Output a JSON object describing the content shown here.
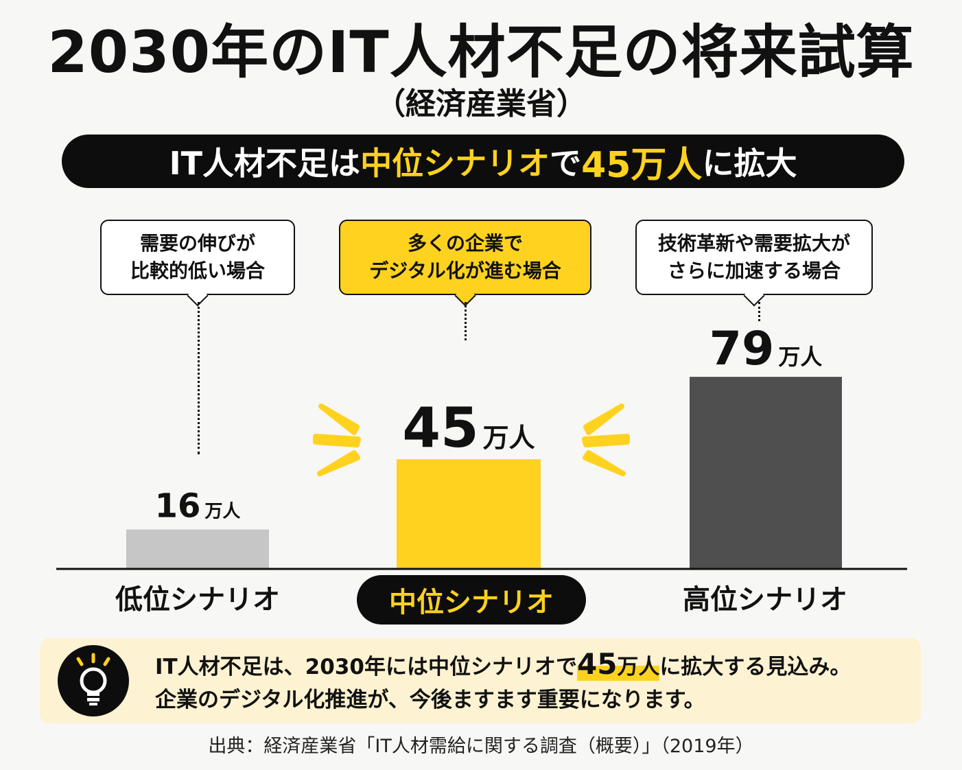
{
  "title": "2030年のIT人材不足の将来試算",
  "subtitle": "（経済産業省）",
  "headline": {
    "part1": "IT人材不足は",
    "part2": "中位シナリオ",
    "part3": "で",
    "part4": "45万人",
    "part5": "に拡大"
  },
  "bubbles": [
    {
      "line1": "需要の伸びが",
      "line2": "比較的低い場合"
    },
    {
      "line1": "多くの企業で",
      "line2": "デジタル化が進む場合"
    },
    {
      "line1": "技術革新や需要拡大が",
      "line2": "さらに加速する場合"
    }
  ],
  "chart_data": {
    "type": "bar",
    "categories": [
      "低位シナリオ",
      "中位シナリオ",
      "高位シナリオ"
    ],
    "values": [
      16,
      45,
      79
    ],
    "unit": "万人",
    "data_labels": [
      "16",
      "45",
      "79"
    ],
    "colors": [
      "#c6c6c6",
      "#ffd21f",
      "#4f4f4f"
    ],
    "highlight": "中位シナリオ"
  },
  "note": {
    "line1_a": "IT人材不足は、2030年には中位シナリオで",
    "line1_num": "45",
    "line1_unit": "万人",
    "line1_b": "に拡大する見込み。",
    "line2": "企業のデジタル化推進が、今後ますます重要になります。",
    "icon": "lightbulb-icon"
  },
  "source": "出典：経済産業省「IT人材需給に関する調査（概要）」（2019年）"
}
